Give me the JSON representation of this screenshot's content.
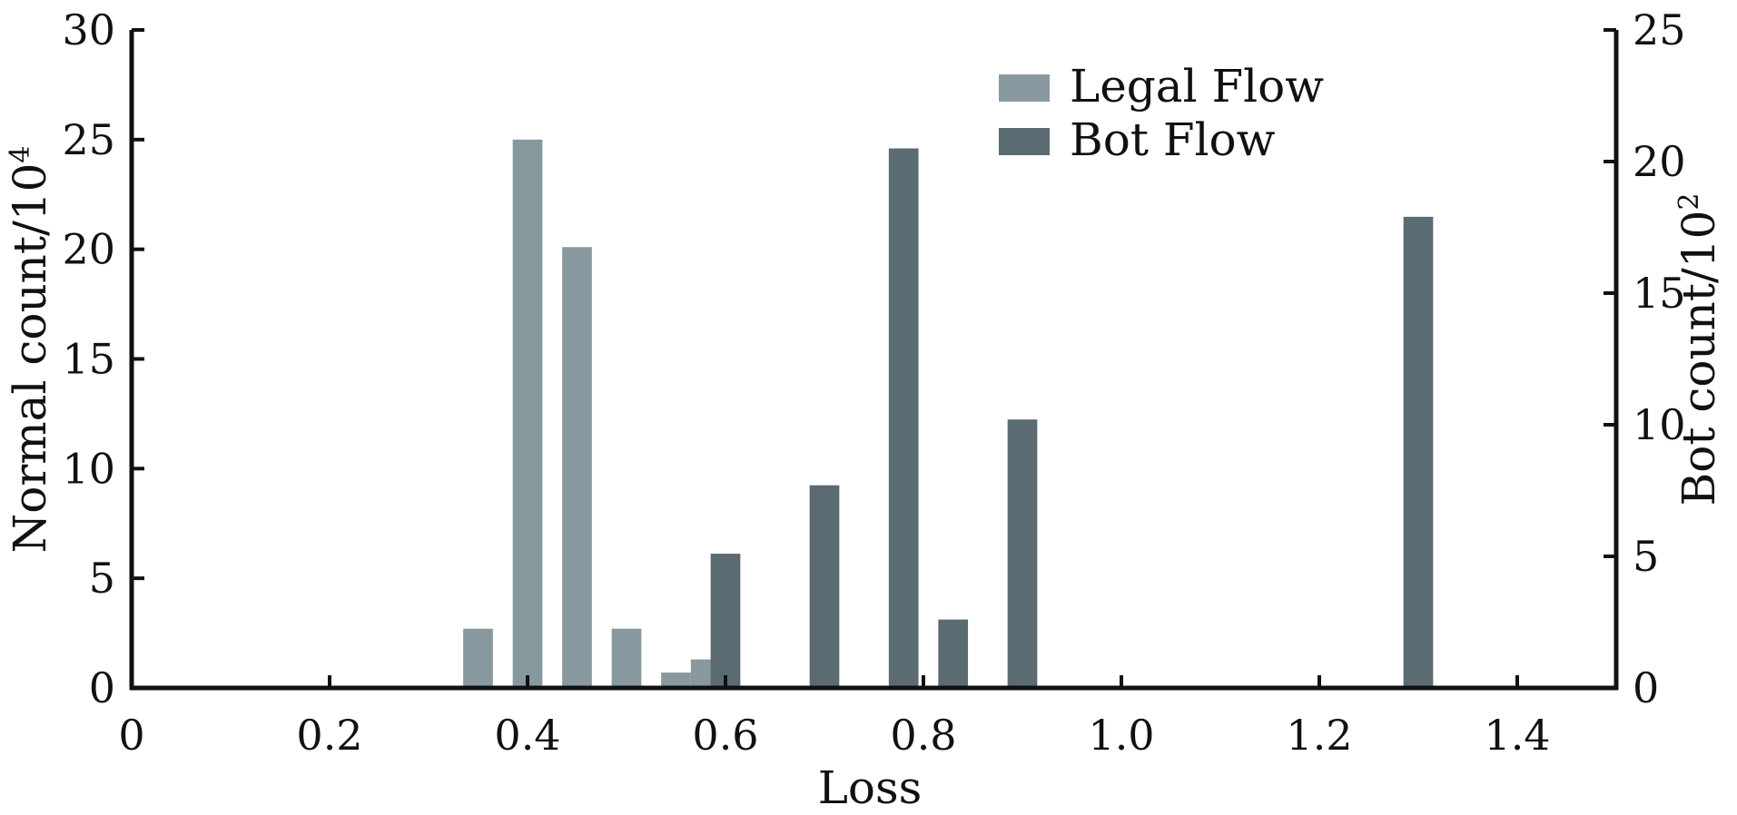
{
  "chart_data": {
    "type": "bar",
    "xlabel": "Loss",
    "y_left_label": "Normal count/10",
    "y_left_label_exp": "4",
    "y_right_label": "Bot count/10",
    "y_right_label_exp": "2",
    "xlim": [
      0,
      1.5
    ],
    "ylim_left": [
      0,
      30
    ],
    "ylim_right": [
      0,
      25
    ],
    "x_ticks": [
      0,
      0.2,
      0.4,
      0.6,
      0.8,
      1.0,
      1.2,
      1.4
    ],
    "x_tick_labels": [
      "0",
      "0.2",
      "0.4",
      "0.6",
      "0.8",
      "1.0",
      "1.2",
      "1.4"
    ],
    "y_left_ticks": [
      0,
      5,
      10,
      15,
      20,
      25,
      30
    ],
    "y_left_tick_labels": [
      "0",
      "5",
      "10",
      "15",
      "20",
      "25",
      "30"
    ],
    "y_right_ticks": [
      0,
      5,
      10,
      15,
      20,
      25
    ],
    "y_right_tick_labels": [
      "0",
      "5",
      "10",
      "15",
      "20",
      "25"
    ],
    "grid": false,
    "legend_position": "top-center",
    "bar_width": 0.03,
    "series": [
      {
        "name": "Legal Flow",
        "axis": "left",
        "color": "#87999f",
        "x": [
          0.35,
          0.4,
          0.45,
          0.5,
          0.55,
          0.58
        ],
        "values": [
          2.7,
          25.0,
          20.1,
          2.7,
          0.7,
          1.3
        ]
      },
      {
        "name": "Bot Flow",
        "axis": "right",
        "color": "#5b6b72",
        "x": [
          0.6,
          0.7,
          0.78,
          0.83,
          0.9,
          1.3
        ],
        "values": [
          5.1,
          7.7,
          20.5,
          2.6,
          10.2,
          17.9
        ]
      }
    ]
  }
}
